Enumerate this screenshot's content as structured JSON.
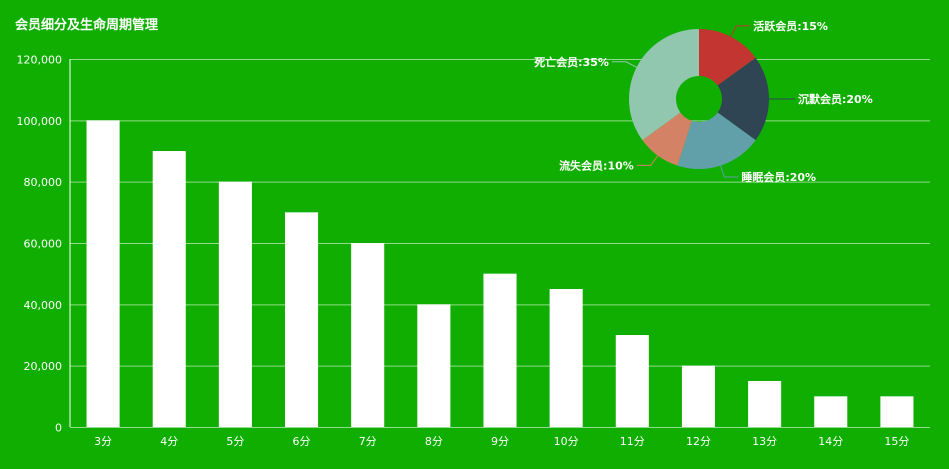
{
  "chart_data": [
    {
      "type": "bar",
      "title": "会员细分及生命周期管理",
      "categories": [
        "3分",
        "4分",
        "5分",
        "6分",
        "7分",
        "8分",
        "9分",
        "10分",
        "11分",
        "12分",
        "13分",
        "14分",
        "15分"
      ],
      "values": [
        100000,
        90000,
        80000,
        70000,
        60000,
        40000,
        50000,
        45000,
        30000,
        20000,
        15000,
        10000,
        10000
      ],
      "ylim": [
        0,
        120000
      ],
      "yticks": [
        0,
        20000,
        40000,
        60000,
        80000,
        100000,
        120000
      ],
      "ytick_labels": [
        "0",
        "20,000",
        "40,000",
        "60,000",
        "80,000",
        "100,000",
        "120,000"
      ],
      "grid": true,
      "bar_color": "#ffffff",
      "background": "#0fae00"
    },
    {
      "type": "pie",
      "donut": true,
      "slices": [
        {
          "label": "活跃会员:15%",
          "value": 15,
          "color": "#c23531"
        },
        {
          "label": "沉默会员:20%",
          "value": 20,
          "color": "#2f4554"
        },
        {
          "label": "睡眠会员:20%",
          "value": 20,
          "color": "#61a0a8"
        },
        {
          "label": "流失会员:10%",
          "value": 10,
          "color": "#d48265"
        },
        {
          "label": "死亡会员:35%",
          "value": 35,
          "color": "#91c7ae"
        }
      ]
    }
  ]
}
